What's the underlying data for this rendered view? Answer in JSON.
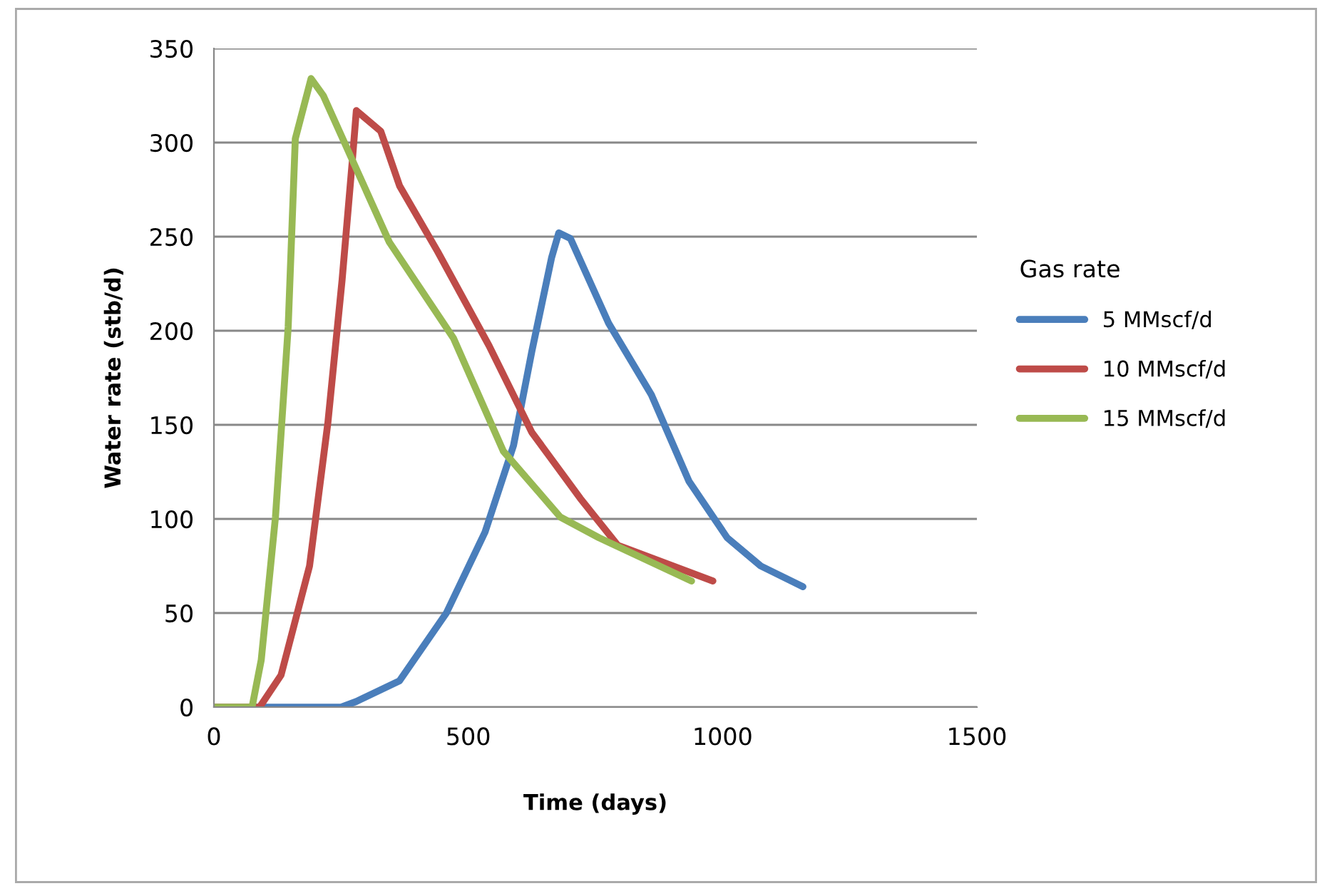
{
  "chart_data": {
    "type": "line",
    "xlabel": "Time (days)",
    "ylabel": "Water rate (stb/d)",
    "legend_title": "Gas rate",
    "xlim": [
      0,
      1500
    ],
    "xticks": [
      0,
      500,
      1000,
      1500
    ],
    "ylim": [
      0,
      350
    ],
    "yticks": [
      0,
      50,
      100,
      150,
      200,
      250,
      300,
      350
    ],
    "grid": "y",
    "legend": "right",
    "marker": "none",
    "line_style": "solid",
    "series": [
      {
        "name": "5 MMscf/d",
        "color": "#4a7ebb",
        "x": [
          0,
          250,
          280,
          365,
          457,
          533,
          589,
          625,
          664,
          678,
          701,
          776,
          860,
          934,
          1009,
          1075,
          1158
        ],
        "values": [
          0,
          0,
          3,
          14,
          50,
          93,
          139,
          189,
          239,
          252,
          249,
          204,
          166,
          120,
          90,
          75,
          64
        ]
      },
      {
        "name": "10 MMscf/d",
        "color": "#be4b48",
        "x": [
          0,
          90,
          132,
          188,
          224,
          252,
          272,
          280,
          328,
          365,
          440,
          541,
          625,
          720,
          794,
          981
        ],
        "values": [
          0,
          0,
          17,
          75,
          151,
          227,
          290,
          317,
          306,
          277,
          242,
          192,
          146,
          111,
          86,
          67
        ]
      },
      {
        "name": "15 MMscf/d",
        "color": "#98b954",
        "x": [
          0,
          75,
          93,
          121,
          146,
          160,
          191,
          215,
          345,
          471,
          569,
          681,
          757,
          939
        ],
        "values": [
          0,
          0,
          25,
          101,
          202,
          302,
          334,
          325,
          247,
          196,
          136,
          101,
          90,
          67
        ]
      }
    ]
  }
}
